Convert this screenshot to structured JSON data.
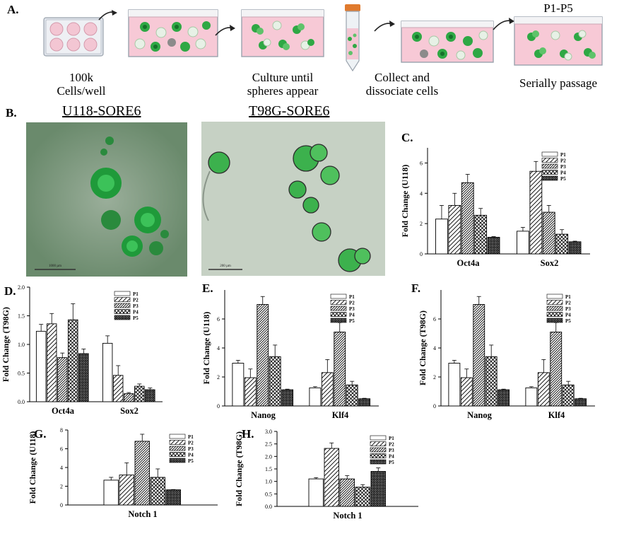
{
  "panels": {
    "A": "A.",
    "B": "B.",
    "C": "C.",
    "D": "D.",
    "E": "E.",
    "F": "F.",
    "G": "G.",
    "H": "H."
  },
  "workflow": {
    "step1": [
      "100k",
      "Cells/well"
    ],
    "step2": [
      "Culture until",
      "spheres appear"
    ],
    "step3": [
      "Collect and",
      "dissociate cells"
    ],
    "step4": "Serially passage",
    "passage_range": "P1-P5"
  },
  "images": {
    "left_title": "U118-SORE6",
    "right_title": "T98G-SORE6",
    "left_scale": "1000 µm",
    "right_scale": "200 µm"
  },
  "colors": {
    "well_pink": "#f3c6d3",
    "medium_pink": "#f7c9d6",
    "sphere_green": "#2ea844",
    "micro_left_bg": "#7f9d80",
    "micro_right_bg": "#c6d1c4"
  },
  "chart_data": [
    {
      "id": "C",
      "type": "bar",
      "ylabel": "Fold Change (U118)",
      "categories": [
        "Oct4a",
        "Sox2"
      ],
      "ylim": [
        0,
        7
      ],
      "yticks": [
        0,
        2,
        4,
        6
      ],
      "series": [
        {
          "name": "P1",
          "values": [
            2.3,
            1.5
          ],
          "errors": [
            0.9,
            0.25
          ]
        },
        {
          "name": "P2",
          "values": [
            3.2,
            5.45
          ],
          "errors": [
            0.8,
            0.65
          ]
        },
        {
          "name": "P3",
          "values": [
            4.7,
            2.75
          ],
          "errors": [
            0.55,
            0.45
          ]
        },
        {
          "name": "P4",
          "values": [
            2.55,
            1.3
          ],
          "errors": [
            0.45,
            0.3
          ]
        },
        {
          "name": "P5",
          "values": [
            1.1,
            0.8
          ],
          "errors": [
            0.04,
            0.04
          ]
        }
      ]
    },
    {
      "id": "D",
      "type": "bar",
      "ylabel": "Fold Change (T98G)",
      "categories": [
        "Oct4a",
        "Sox2"
      ],
      "ylim": [
        0,
        2.0
      ],
      "yticks": [
        "0.0",
        "0.5",
        "1.0",
        "1.5",
        "2.0"
      ],
      "series": [
        {
          "name": "P1",
          "values": [
            1.23,
            1.02
          ],
          "errors": [
            0.12,
            0.13
          ]
        },
        {
          "name": "P2",
          "values": [
            1.36,
            0.46
          ],
          "errors": [
            0.18,
            0.17
          ]
        },
        {
          "name": "P3",
          "values": [
            0.77,
            0.14
          ],
          "errors": [
            0.08,
            0.02
          ]
        },
        {
          "name": "P4",
          "values": [
            1.43,
            0.27
          ],
          "errors": [
            0.28,
            0.04
          ]
        },
        {
          "name": "P5",
          "values": [
            0.84,
            0.21
          ],
          "errors": [
            0.08,
            0.03
          ]
        }
      ]
    },
    {
      "id": "E",
      "type": "bar",
      "ylabel": "Fold Change (U118)",
      "categories": [
        "Nanog",
        "Klf4"
      ],
      "ylim": [
        0,
        8
      ],
      "yticks": [
        0,
        2,
        4,
        6
      ],
      "series": [
        {
          "name": "P1",
          "values": [
            2.95,
            1.25
          ],
          "errors": [
            0.2,
            0.08
          ]
        },
        {
          "name": "P2",
          "values": [
            1.95,
            2.3
          ],
          "errors": [
            0.6,
            0.9
          ]
        },
        {
          "name": "P3",
          "values": [
            7.0,
            5.1
          ],
          "errors": [
            0.55,
            0.65
          ]
        },
        {
          "name": "P4",
          "values": [
            3.4,
            1.45
          ],
          "errors": [
            0.8,
            0.25
          ]
        },
        {
          "name": "P5",
          "values": [
            1.12,
            0.5
          ],
          "errors": [
            0.04,
            0.03
          ]
        }
      ]
    },
    {
      "id": "F",
      "type": "bar",
      "ylabel": "Fold Change (T98G)",
      "categories": [
        "Nanog",
        "Klf4"
      ],
      "ylim": [
        0,
        8
      ],
      "yticks": [
        0,
        2,
        4,
        6
      ],
      "series": [
        {
          "name": "P1",
          "values": [
            2.95,
            1.25
          ],
          "errors": [
            0.2,
            0.08
          ]
        },
        {
          "name": "P2",
          "values": [
            1.95,
            2.3
          ],
          "errors": [
            0.6,
            0.9
          ]
        },
        {
          "name": "P3",
          "values": [
            7.0,
            5.1
          ],
          "errors": [
            0.55,
            0.65
          ]
        },
        {
          "name": "P4",
          "values": [
            3.4,
            1.45
          ],
          "errors": [
            0.8,
            0.25
          ]
        },
        {
          "name": "P5",
          "values": [
            1.12,
            0.5
          ],
          "errors": [
            0.04,
            0.03
          ]
        }
      ]
    },
    {
      "id": "G",
      "type": "bar",
      "ylabel": "Fold Change (U118)",
      "categories": [
        "Notch 1"
      ],
      "ylim": [
        0,
        8
      ],
      "yticks": [
        0,
        2,
        4,
        6,
        8
      ],
      "series": [
        {
          "name": "P1",
          "values": [
            2.65
          ],
          "errors": [
            0.3
          ]
        },
        {
          "name": "P2",
          "values": [
            3.2
          ],
          "errors": [
            1.3
          ]
        },
        {
          "name": "P3",
          "values": [
            6.8
          ],
          "errors": [
            0.75
          ]
        },
        {
          "name": "P4",
          "values": [
            2.95
          ],
          "errors": [
            0.9
          ]
        },
        {
          "name": "P5",
          "values": [
            1.62
          ],
          "errors": [
            0.03
          ]
        }
      ]
    },
    {
      "id": "H",
      "type": "bar",
      "ylabel": "Fold Change (T98G)",
      "categories": [
        "Notch 1"
      ],
      "ylim": [
        0,
        3.0
      ],
      "yticks": [
        "0.0",
        "0.5",
        "1.0",
        "1.5",
        "2.0",
        "2.5",
        "3.0"
      ],
      "series": [
        {
          "name": "P1",
          "values": [
            1.1
          ],
          "errors": [
            0.05
          ]
        },
        {
          "name": "P2",
          "values": [
            2.32
          ],
          "errors": [
            0.22
          ]
        },
        {
          "name": "P3",
          "values": [
            1.1
          ],
          "errors": [
            0.13
          ]
        },
        {
          "name": "P4",
          "values": [
            0.77
          ],
          "errors": [
            0.1
          ]
        },
        {
          "name": "P5",
          "values": [
            1.4
          ],
          "errors": [
            0.14
          ]
        }
      ]
    }
  ]
}
